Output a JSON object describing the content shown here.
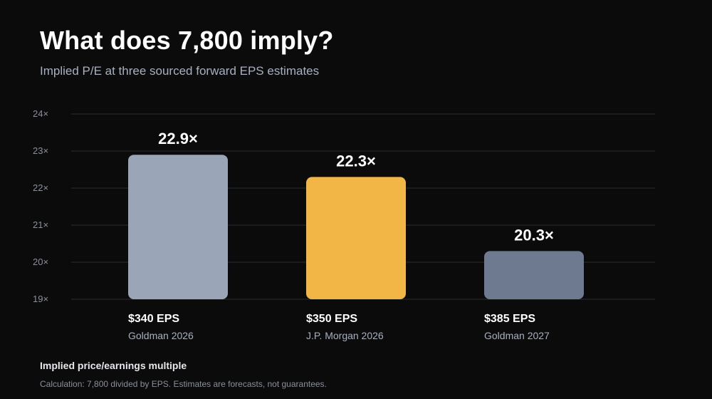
{
  "header": {
    "title": "What does 7,800 imply?",
    "subtitle": "Implied P/E at three sourced forward EPS estimates"
  },
  "footer": {
    "axis_note": "Implied price/earnings multiple",
    "footnote": "Calculation: 7,800 divided by EPS. Estimates are forecasts, not guarantees."
  },
  "chart_data": {
    "type": "bar",
    "title": "What does 7,800 imply?",
    "subtitle": "Implied P/E at three sourced forward EPS estimates",
    "xlabel": "",
    "ylabel": "Implied price/earnings multiple",
    "ylim": [
      19,
      24
    ],
    "yticks": [
      19,
      20,
      21,
      22,
      23,
      24
    ],
    "ytick_labels": [
      "19×",
      "20×",
      "21×",
      "22×",
      "23×",
      "24×"
    ],
    "grid": true,
    "categories": [
      "$340 EPS",
      "$350 EPS",
      "$385 EPS"
    ],
    "sublabels": [
      "Goldman 2026",
      "J.P. Morgan 2026",
      "Goldman 2027"
    ],
    "values": [
      22.9,
      22.3,
      20.3
    ],
    "value_labels": [
      "22.9×",
      "22.3×",
      "20.3×"
    ],
    "colors": [
      "#9aa5b8",
      "#f2b646",
      "#6e7a90"
    ]
  },
  "colors": {
    "background": "#0b0b0c",
    "grid": "#2a2c30",
    "tick_text": "#8a8f99",
    "sublabel_text": "#a7b0c0"
  }
}
